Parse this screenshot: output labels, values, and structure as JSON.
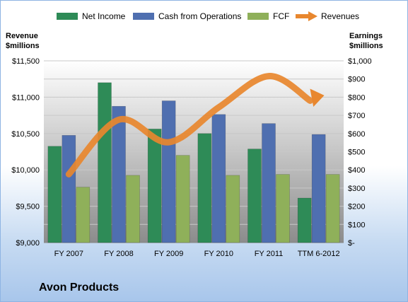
{
  "company_title": "Avon Products",
  "chart_data": {
    "type": "bar",
    "categories": [
      "FY 2007",
      "FY 2008",
      "FY 2009",
      "FY 2010",
      "FY 2011",
      "TTM 6-2012"
    ],
    "series": [
      {
        "name": "Net Income",
        "axis": "right",
        "values": [
          530,
          880,
          625,
          600,
          515,
          245
        ],
        "color": "#2e8b57"
      },
      {
        "name": "Cash from Operations",
        "axis": "right",
        "values": [
          590,
          750,
          780,
          705,
          655,
          595
        ],
        "color": "#4f6fb0"
      },
      {
        "name": "FCF",
        "axis": "right",
        "values": [
          305,
          370,
          480,
          370,
          375,
          375
        ],
        "color": "#8fb05a"
      }
    ],
    "line_series": {
      "name": "Revenues",
      "axis": "left",
      "color": "#e8872e",
      "values": [
        9940,
        10690,
        10380,
        10860,
        11290,
        11010
      ]
    },
    "left_axis": {
      "title_line1": "Revenue",
      "title_line2": "$millions",
      "ylim": [
        9000,
        11500
      ],
      "ticks": [
        "$9,000",
        "$9,500",
        "$10,000",
        "$10,500",
        "$11,000",
        "$11,500"
      ]
    },
    "right_axis": {
      "title_line1": "Earnings",
      "title_line2": "$millions",
      "ylim": [
        0,
        1000
      ],
      "ticks": [
        "$-",
        "$100",
        "$200",
        "$300",
        "$400",
        "$500",
        "$600",
        "$700",
        "$800",
        "$900",
        "$1,000"
      ]
    },
    "legend": [
      "Net Income",
      "Cash from Operations",
      "FCF",
      "Revenues"
    ],
    "legend_position": "top",
    "grid": true
  }
}
